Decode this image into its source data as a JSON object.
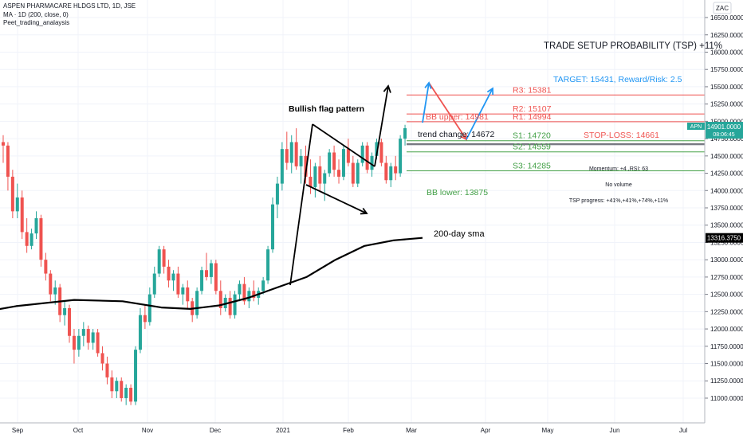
{
  "legend": {
    "symbol_line": "ASPEN PHARMACARE HLDGS LTD, 1D, JSE",
    "ma_line": "MA · 1D (200, close, 0)",
    "author": "Peet_trading_analaysis"
  },
  "toolbar": {
    "zoom_label": "ZAC"
  },
  "chart_data": {
    "type": "candlestick",
    "x_ticks": [
      "Sep",
      "Oct",
      "Nov",
      "Dec",
      "2021",
      "Feb",
      "Mar",
      "Apr",
      "May",
      "Jun",
      "Jul"
    ],
    "y_ticks": [
      "16500.0000",
      "16250.0000",
      "16000.0000",
      "15750.0000",
      "15500.0000",
      "15250.0000",
      "15000.0000",
      "14750.0000",
      "14500.0000",
      "14250.0000",
      "14000.0000",
      "13750.0000",
      "13500.0000",
      "13250.0000",
      "13000.0000",
      "12750.0000",
      "12500.0000",
      "12250.0000",
      "12000.0000",
      "11750.0000",
      "11500.0000",
      "11250.0000",
      "11000.0000"
    ],
    "ylim": [
      10850,
      16650
    ],
    "price_label": {
      "symbol": "APN",
      "value": "14901.0000",
      "time": "08:06:45",
      "color": "#26a69a"
    },
    "sma_label": {
      "value": "13316.3750"
    },
    "candles": [
      {
        "o": 14700,
        "h": 14800,
        "l": 14400,
        "c": 14650
      },
      {
        "o": 14650,
        "h": 14700,
        "l": 14000,
        "c": 14200
      },
      {
        "o": 14200,
        "h": 14300,
        "l": 13600,
        "c": 13700
      },
      {
        "o": 13700,
        "h": 14100,
        "l": 13600,
        "c": 13900
      },
      {
        "o": 13900,
        "h": 14000,
        "l": 13300,
        "c": 13400
      },
      {
        "o": 13400,
        "h": 13600,
        "l": 13100,
        "c": 13200
      },
      {
        "o": 13200,
        "h": 13450,
        "l": 13150,
        "c": 13380
      },
      {
        "o": 13380,
        "h": 13700,
        "l": 13300,
        "c": 13600
      },
      {
        "o": 13600,
        "h": 13650,
        "l": 12900,
        "c": 13000
      },
      {
        "o": 13000,
        "h": 13100,
        "l": 12700,
        "c": 12800
      },
      {
        "o": 12800,
        "h": 12850,
        "l": 12400,
        "c": 12500
      },
      {
        "o": 12500,
        "h": 12700,
        "l": 12350,
        "c": 12600
      },
      {
        "o": 12600,
        "h": 12650,
        "l": 12100,
        "c": 12200
      },
      {
        "o": 12200,
        "h": 12400,
        "l": 12050,
        "c": 12300
      },
      {
        "o": 12300,
        "h": 12350,
        "l": 11800,
        "c": 11900
      },
      {
        "o": 11900,
        "h": 12000,
        "l": 11500,
        "c": 11700
      },
      {
        "o": 11700,
        "h": 12000,
        "l": 11600,
        "c": 11900
      },
      {
        "o": 11900,
        "h": 12100,
        "l": 11750,
        "c": 12000
      },
      {
        "o": 12000,
        "h": 12050,
        "l": 11700,
        "c": 11800
      },
      {
        "o": 11800,
        "h": 12000,
        "l": 11700,
        "c": 11950
      },
      {
        "o": 11950,
        "h": 12000,
        "l": 11600,
        "c": 11650
      },
      {
        "o": 11650,
        "h": 11750,
        "l": 11400,
        "c": 11500
      },
      {
        "o": 11500,
        "h": 11600,
        "l": 11200,
        "c": 11300
      },
      {
        "o": 11300,
        "h": 11400,
        "l": 11000,
        "c": 11100
      },
      {
        "o": 11100,
        "h": 11300,
        "l": 11000,
        "c": 11250
      },
      {
        "o": 11250,
        "h": 11300,
        "l": 10950,
        "c": 11000
      },
      {
        "o": 11000,
        "h": 11200,
        "l": 10900,
        "c": 11150
      },
      {
        "o": 11150,
        "h": 11200,
        "l": 10900,
        "c": 10950
      },
      {
        "o": 10950,
        "h": 11750,
        "l": 10900,
        "c": 11700
      },
      {
        "o": 11700,
        "h": 12300,
        "l": 11650,
        "c": 12200
      },
      {
        "o": 12200,
        "h": 12350,
        "l": 12000,
        "c": 12100
      },
      {
        "o": 12100,
        "h": 12600,
        "l": 12050,
        "c": 12500
      },
      {
        "o": 12500,
        "h": 12900,
        "l": 12450,
        "c": 12800
      },
      {
        "o": 12800,
        "h": 13200,
        "l": 12750,
        "c": 13150
      },
      {
        "o": 13150,
        "h": 13200,
        "l": 12800,
        "c": 12900
      },
      {
        "o": 12900,
        "h": 13000,
        "l": 12600,
        "c": 12700
      },
      {
        "o": 12700,
        "h": 12850,
        "l": 12550,
        "c": 12800
      },
      {
        "o": 12800,
        "h": 12900,
        "l": 12450,
        "c": 12500
      },
      {
        "o": 12500,
        "h": 12650,
        "l": 12350,
        "c": 12600
      },
      {
        "o": 12600,
        "h": 12700,
        "l": 12300,
        "c": 12400
      },
      {
        "o": 12400,
        "h": 12450,
        "l": 12100,
        "c": 12200
      },
      {
        "o": 12200,
        "h": 12600,
        "l": 12150,
        "c": 12550
      },
      {
        "o": 12550,
        "h": 12900,
        "l": 12500,
        "c": 12850
      },
      {
        "o": 12850,
        "h": 13100,
        "l": 12700,
        "c": 12750
      },
      {
        "o": 12750,
        "h": 13000,
        "l": 12650,
        "c": 12950
      },
      {
        "o": 12950,
        "h": 13000,
        "l": 12500,
        "c": 12550
      },
      {
        "o": 12550,
        "h": 12700,
        "l": 12200,
        "c": 12300
      },
      {
        "o": 12300,
        "h": 12500,
        "l": 12250,
        "c": 12450
      },
      {
        "o": 12450,
        "h": 12550,
        "l": 12150,
        "c": 12200
      },
      {
        "o": 12200,
        "h": 12550,
        "l": 12150,
        "c": 12500
      },
      {
        "o": 12500,
        "h": 12700,
        "l": 12400,
        "c": 12650
      },
      {
        "o": 12650,
        "h": 12750,
        "l": 12350,
        "c": 12400
      },
      {
        "o": 12400,
        "h": 12600,
        "l": 12300,
        "c": 12550
      },
      {
        "o": 12550,
        "h": 12700,
        "l": 12400,
        "c": 12450
      },
      {
        "o": 12450,
        "h": 12600,
        "l": 12350,
        "c": 12550
      },
      {
        "o": 12550,
        "h": 12750,
        "l": 12500,
        "c": 12700
      },
      {
        "o": 12700,
        "h": 13200,
        "l": 12650,
        "c": 13150
      },
      {
        "o": 13150,
        "h": 13900,
        "l": 13100,
        "c": 13800
      },
      {
        "o": 13800,
        "h": 14200,
        "l": 13600,
        "c": 14100
      },
      {
        "o": 14100,
        "h": 14700,
        "l": 14000,
        "c": 14600
      },
      {
        "o": 14600,
        "h": 14850,
        "l": 14300,
        "c": 14400
      },
      {
        "o": 14400,
        "h": 14800,
        "l": 14250,
        "c": 14700
      },
      {
        "o": 14700,
        "h": 14900,
        "l": 14300,
        "c": 14350
      },
      {
        "o": 14350,
        "h": 14600,
        "l": 14100,
        "c": 14500
      },
      {
        "o": 14500,
        "h": 14650,
        "l": 14100,
        "c": 14200
      },
      {
        "o": 14200,
        "h": 14450,
        "l": 13950,
        "c": 14050
      },
      {
        "o": 14050,
        "h": 14400,
        "l": 13900,
        "c": 14350
      },
      {
        "o": 14350,
        "h": 14500,
        "l": 14000,
        "c": 14100
      },
      {
        "o": 14100,
        "h": 14300,
        "l": 13850,
        "c": 14250
      },
      {
        "o": 14250,
        "h": 14600,
        "l": 14200,
        "c": 14550
      },
      {
        "o": 14550,
        "h": 14650,
        "l": 14200,
        "c": 14300
      },
      {
        "o": 14300,
        "h": 14450,
        "l": 14100,
        "c": 14200
      },
      {
        "o": 14200,
        "h": 14650,
        "l": 14150,
        "c": 14600
      },
      {
        "o": 14600,
        "h": 14750,
        "l": 14350,
        "c": 14400
      },
      {
        "o": 14400,
        "h": 14500,
        "l": 14050,
        "c": 14100
      },
      {
        "o": 14100,
        "h": 14450,
        "l": 14050,
        "c": 14400
      },
      {
        "o": 14400,
        "h": 14700,
        "l": 14350,
        "c": 14650
      },
      {
        "o": 14650,
        "h": 14700,
        "l": 14250,
        "c": 14300
      },
      {
        "o": 14300,
        "h": 14550,
        "l": 14200,
        "c": 14500
      },
      {
        "o": 14500,
        "h": 14750,
        "l": 14450,
        "c": 14700
      },
      {
        "o": 14700,
        "h": 14750,
        "l": 14350,
        "c": 14400
      },
      {
        "o": 14400,
        "h": 14500,
        "l": 14100,
        "c": 14150
      },
      {
        "o": 14150,
        "h": 14400,
        "l": 14050,
        "c": 14350
      },
      {
        "o": 14350,
        "h": 14500,
        "l": 14150,
        "c": 14250
      },
      {
        "o": 14250,
        "h": 14800,
        "l": 14200,
        "c": 14750
      },
      {
        "o": 14750,
        "h": 14950,
        "l": 14650,
        "c": 14901
      }
    ],
    "sma_line": [
      {
        "d": -10,
        "v": 12280
      },
      {
        "d": 0,
        "v": 12330
      },
      {
        "d": 30,
        "v": 12420
      },
      {
        "d": 55,
        "v": 12400
      },
      {
        "d": 75,
        "v": 12310
      },
      {
        "d": 90,
        "v": 12290
      },
      {
        "d": 105,
        "v": 12340
      },
      {
        "d": 120,
        "v": 12450
      },
      {
        "d": 135,
        "v": 12600
      },
      {
        "d": 150,
        "v": 12750
      },
      {
        "d": 165,
        "v": 13000
      },
      {
        "d": 180,
        "v": 13200
      },
      {
        "d": 195,
        "v": 13280
      },
      {
        "d": 210,
        "v": 13316
      }
    ],
    "levels": [
      {
        "name": "R3",
        "label": "R3: 15381",
        "value": 15381,
        "color": "#ef5350"
      },
      {
        "name": "BB upper",
        "label": "BB upper: 14981",
        "value": 14981,
        "color": "#ef5350"
      },
      {
        "name": "R2",
        "label": "R2: 15107",
        "value": 15107,
        "color": "#ef5350"
      },
      {
        "name": "R1",
        "label": "R1: 14994",
        "value": 14994,
        "color": "#ef5350"
      },
      {
        "name": "S1",
        "label": "S1: 14720",
        "value": 14720,
        "color": "#43a047"
      },
      {
        "name": "S2",
        "label": "S2: 14559",
        "value": 14559,
        "color": "#43a047"
      },
      {
        "name": "S3",
        "label": "S3: 14285",
        "value": 14285,
        "color": "#43a047"
      },
      {
        "name": "BB lower",
        "label": "BB lower: 13875",
        "value": 13875,
        "color": "#43a047"
      },
      {
        "name": "trend change",
        "label": "trend change: 14672",
        "value": 14672,
        "color": "#131722"
      },
      {
        "name": "stop loss",
        "label": "STOP-LOSS: 14661",
        "value": 14661,
        "color": "#ef5350"
      },
      {
        "name": "target",
        "label": "TARGET: 15431, Reward/Risk: 2.5",
        "value": 15431,
        "color": "#2196f3"
      }
    ],
    "annotations": {
      "tsp": "TRADE SETUP PROBABILITY (TSP) +11%",
      "flag": "Bullish flag pattern",
      "sma": "200-day sma",
      "momentum": "Momentum: +4 ,RSI: 63",
      "volume": "No volume",
      "tsp_progress": "TSP progress: +41%,+41%,+74%,+11%"
    },
    "colors": {
      "up": "#26a69a",
      "down": "#ef5350",
      "sma": "#000000",
      "grid": "#f0f3fa"
    }
  }
}
